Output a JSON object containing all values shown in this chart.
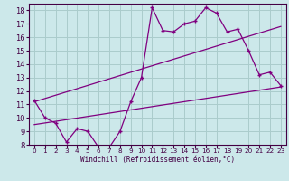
{
  "xlabel": "Windchill (Refroidissement éolien,°C)",
  "bg_color": "#cce8ea",
  "grid_color": "#aacccc",
  "line_color": "#800080",
  "xlim": [
    -0.5,
    23.5
  ],
  "ylim": [
    8,
    18.5
  ],
  "xticks": [
    0,
    1,
    2,
    3,
    4,
    5,
    6,
    7,
    8,
    9,
    10,
    11,
    12,
    13,
    14,
    15,
    16,
    17,
    18,
    19,
    20,
    21,
    22,
    23
  ],
  "yticks": [
    8,
    9,
    10,
    11,
    12,
    13,
    14,
    15,
    16,
    17,
    18
  ],
  "series1_x": [
    0,
    1,
    2,
    3,
    4,
    5,
    6,
    7,
    8,
    9,
    10,
    11,
    12,
    13,
    14,
    15,
    16,
    17,
    18,
    19,
    20,
    21,
    22,
    23
  ],
  "series1_y": [
    11.3,
    10.0,
    9.6,
    8.2,
    9.2,
    9.0,
    7.8,
    7.8,
    9.0,
    11.2,
    13.0,
    18.2,
    16.5,
    16.4,
    17.0,
    17.2,
    18.2,
    17.8,
    16.4,
    16.6,
    15.0,
    13.2,
    13.4,
    12.4
  ],
  "series2_x": [
    0,
    23
  ],
  "series2_y": [
    9.5,
    12.3
  ],
  "series3_x": [
    0,
    23
  ],
  "series3_y": [
    11.2,
    16.8
  ]
}
